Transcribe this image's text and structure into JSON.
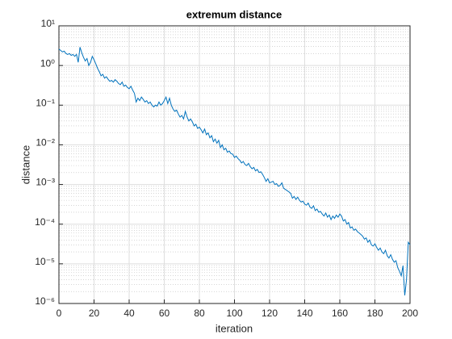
{
  "chart_data": {
    "type": "line",
    "title": "extremum distance",
    "xlabel": "iteration",
    "ylabel": "distance",
    "log_y": true,
    "grid": true,
    "color": "#0072bd",
    "xlim": [
      0,
      200
    ],
    "xticks": [
      0,
      20,
      40,
      60,
      80,
      100,
      120,
      140,
      160,
      180,
      200
    ],
    "ylim": [
      1e-06,
      10
    ],
    "yticks": [
      {
        "value": 1e-06,
        "label": "10⁻⁶"
      },
      {
        "value": 1e-05,
        "label": "10⁻⁵"
      },
      {
        "value": 0.0001,
        "label": "10⁻⁴"
      },
      {
        "value": 0.001,
        "label": "10⁻³"
      },
      {
        "value": 0.01,
        "label": "10⁻²"
      },
      {
        "value": 0.1,
        "label": "10⁻¹"
      },
      {
        "value": 1,
        "label": "10⁰"
      },
      {
        "value": 10,
        "label": "10¹"
      }
    ],
    "yminorticks": [
      2e-06,
      3e-06,
      4e-06,
      5e-06,
      6e-06,
      7e-06,
      8e-06,
      9e-06,
      2e-05,
      3e-05,
      4e-05,
      5e-05,
      6e-05,
      7e-05,
      8e-05,
      9e-05,
      0.0002,
      0.0003,
      0.0004,
      0.0005,
      0.0006,
      0.0007,
      0.0008,
      0.0009,
      0.002,
      0.003,
      0.004,
      0.005,
      0.006,
      0.007,
      0.008,
      0.009,
      0.02,
      0.03,
      0.04,
      0.05,
      0.06,
      0.07,
      0.08,
      0.09,
      0.2,
      0.3,
      0.4,
      0.5,
      0.6,
      0.7,
      0.8,
      0.9,
      2,
      3,
      4,
      5,
      6,
      7,
      8,
      9
    ],
    "x": [
      0,
      1,
      2,
      3,
      4,
      5,
      6,
      7,
      8,
      9,
      10,
      11,
      12,
      13,
      14,
      15,
      16,
      17,
      18,
      19,
      20,
      21,
      22,
      23,
      24,
      25,
      26,
      27,
      28,
      29,
      30,
      31,
      32,
      33,
      34,
      35,
      36,
      37,
      38,
      39,
      40,
      41,
      42,
      43,
      44,
      45,
      46,
      47,
      48,
      49,
      50,
      51,
      52,
      53,
      54,
      55,
      56,
      57,
      58,
      59,
      60,
      61,
      62,
      63,
      64,
      65,
      66,
      67,
      68,
      69,
      70,
      71,
      72,
      73,
      74,
      75,
      76,
      77,
      78,
      79,
      80,
      81,
      82,
      83,
      84,
      85,
      86,
      87,
      88,
      89,
      90,
      91,
      92,
      93,
      94,
      95,
      96,
      97,
      98,
      99,
      100,
      101,
      102,
      103,
      104,
      105,
      106,
      107,
      108,
      109,
      110,
      111,
      112,
      113,
      114,
      115,
      116,
      117,
      118,
      119,
      120,
      121,
      122,
      123,
      124,
      125,
      126,
      127,
      128,
      129,
      130,
      131,
      132,
      133,
      134,
      135,
      136,
      137,
      138,
      139,
      140,
      141,
      142,
      143,
      144,
      145,
      146,
      147,
      148,
      149,
      150,
      151,
      152,
      153,
      154,
      155,
      156,
      157,
      158,
      159,
      160,
      161,
      162,
      163,
      164,
      165,
      166,
      167,
      168,
      169,
      170,
      171,
      172,
      173,
      174,
      175,
      176,
      177,
      178,
      179,
      180,
      181,
      182,
      183,
      184,
      185,
      186,
      187,
      188,
      189,
      190,
      191,
      192,
      193,
      194,
      195,
      196,
      197,
      198,
      199,
      200
    ],
    "values": [
      2.6,
      2.4,
      2.2,
      2.3,
      2.0,
      1.9,
      2.0,
      1.8,
      1.9,
      1.7,
      1.9,
      1.2,
      2.9,
      2.1,
      1.6,
      1.3,
      1.5,
      1.0,
      1.2,
      1.7,
      1.4,
      1.1,
      0.85,
      0.7,
      0.55,
      0.6,
      0.48,
      0.52,
      0.45,
      0.4,
      0.42,
      0.38,
      0.44,
      0.4,
      0.35,
      0.33,
      0.38,
      0.3,
      0.32,
      0.28,
      0.26,
      0.3,
      0.24,
      0.2,
      0.12,
      0.15,
      0.13,
      0.16,
      0.14,
      0.12,
      0.13,
      0.11,
      0.12,
      0.1,
      0.09,
      0.1,
      0.095,
      0.12,
      0.1,
      0.11,
      0.13,
      0.16,
      0.11,
      0.15,
      0.1,
      0.08,
      0.07,
      0.075,
      0.06,
      0.05,
      0.055,
      0.045,
      0.07,
      0.05,
      0.04,
      0.045,
      0.038,
      0.03,
      0.033,
      0.026,
      0.028,
      0.024,
      0.02,
      0.025,
      0.018,
      0.02,
      0.015,
      0.017,
      0.012,
      0.014,
      0.011,
      0.013,
      0.0085,
      0.01,
      0.0075,
      0.0082,
      0.0065,
      0.007,
      0.006,
      0.0058,
      0.0048,
      0.0052,
      0.0045,
      0.0041,
      0.0035,
      0.0038,
      0.0032,
      0.003,
      0.0034,
      0.0028,
      0.0025,
      0.0027,
      0.0022,
      0.0024,
      0.002,
      0.0021,
      0.0018,
      0.0015,
      0.0012,
      0.0014,
      0.0011,
      0.00115,
      0.0012,
      0.001,
      0.00105,
      0.0009,
      0.00095,
      0.0011,
      0.0008,
      0.00075,
      0.0007,
      0.00065,
      0.0006,
      0.00045,
      0.0005,
      0.00042,
      0.00048,
      0.0004,
      0.00036,
      0.00038,
      0.00032,
      0.0003,
      0.00034,
      0.00027,
      0.00025,
      0.00029,
      0.00022,
      0.00024,
      0.0002,
      0.00021,
      0.00018,
      0.00016,
      0.00019,
      0.00015,
      0.00017,
      0.00013,
      0.00016,
      0.00014,
      0.00017,
      0.00015,
      0.00018,
      0.00016,
      0.00012,
      0.00013,
      0.0001,
      0.00011,
      8e-05,
      8.5e-05,
      7e-05,
      7.5e-05,
      6.5e-05,
      6e-05,
      5.5e-05,
      5e-05,
      4.2e-05,
      4.5e-05,
      3.5e-05,
      4e-05,
      3e-05,
      2.8e-05,
      3.2e-05,
      2.6e-05,
      2.2e-05,
      2.5e-05,
      2e-05,
      1.8e-05,
      2.2e-05,
      1.6e-05,
      1.4e-05,
      1.7e-05,
      1.3e-05,
      1.1e-05,
      1.2e-05,
      8e-06,
      6.5e-06,
      5e-06,
      9e-06,
      1.6e-06,
      4e-06,
      3.5e-05,
      3e-05
    ]
  }
}
